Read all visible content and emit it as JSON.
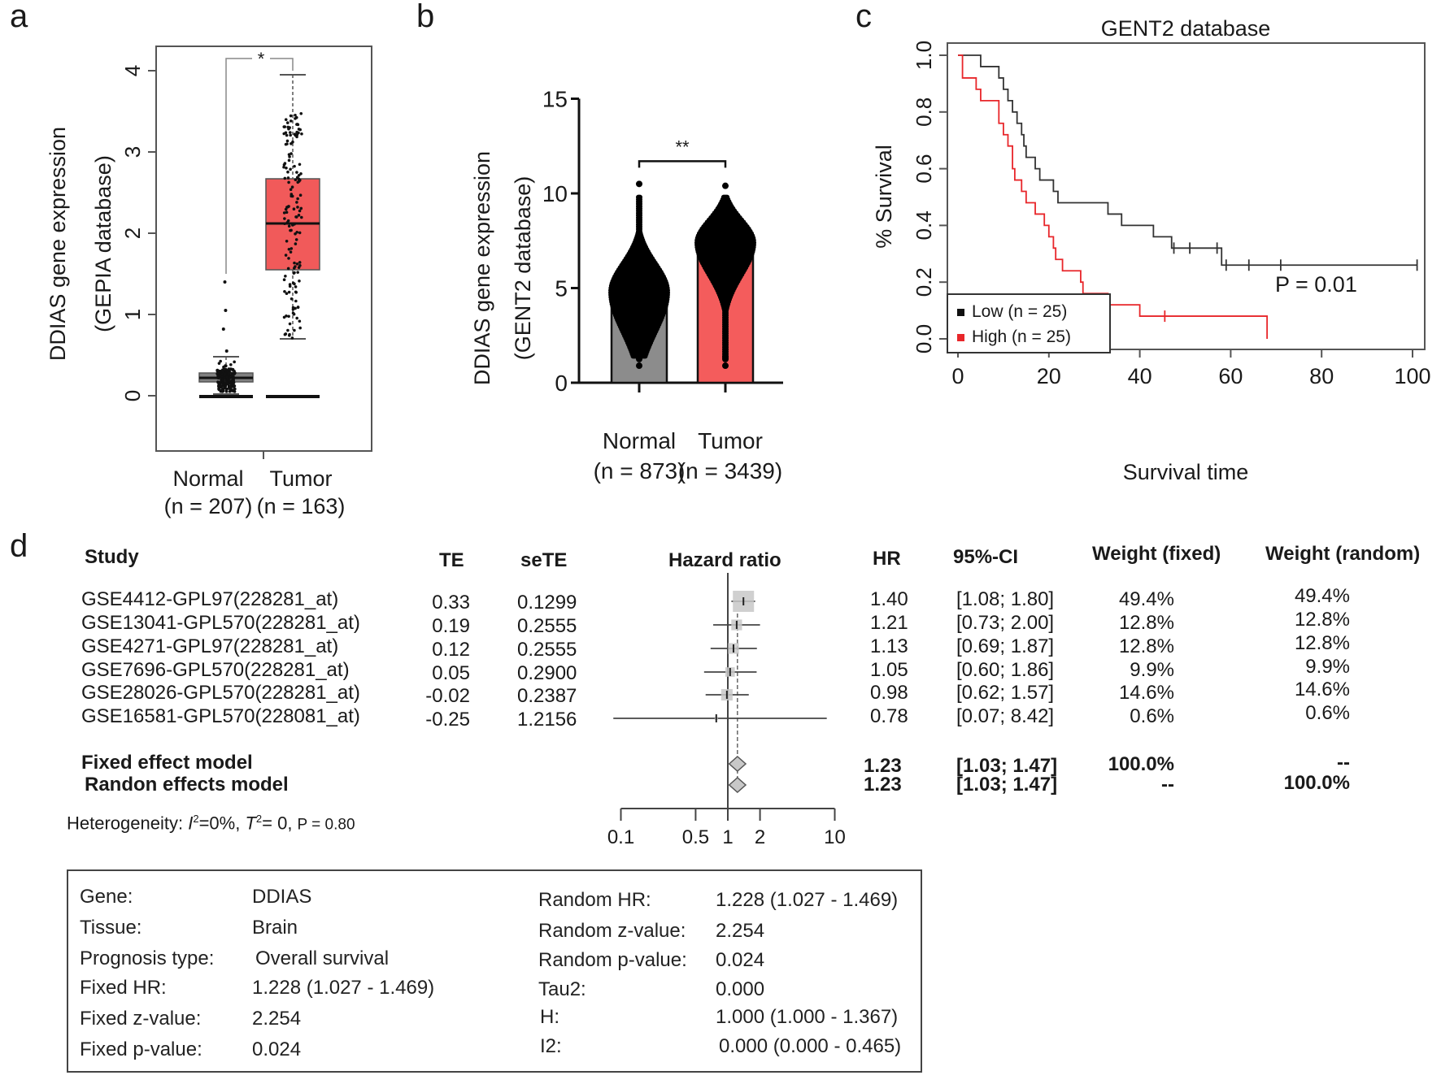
{
  "panels": {
    "a": {
      "letter": "a"
    },
    "b": {
      "letter": "b"
    },
    "c": {
      "letter": "c"
    },
    "d": {
      "letter": "d"
    }
  },
  "chart_data": [
    {
      "id": "a",
      "type": "box",
      "ylabel_line1": "DDIAS gene expression",
      "ylabel_line2": "(GEPIA database)",
      "ylim": [
        0,
        4.2
      ],
      "yticks": [
        "0",
        "1",
        "2",
        "3",
        "4"
      ],
      "significance": "*",
      "categories": [
        {
          "name": "Normal",
          "n_label": "(n = 207)",
          "q1": 0.17,
          "median": 0.22,
          "q3": 0.28,
          "whisker_low": 0.02,
          "whisker_high": 0.48,
          "outliers": [
            0.55,
            0.82,
            1.05,
            1.4
          ],
          "color": "#808080"
        },
        {
          "name": "Tumor",
          "n_label": "(n = 163)",
          "q1": 1.55,
          "median": 2.12,
          "q3": 2.67,
          "whisker_low": 0.7,
          "whisker_high": 3.95,
          "outliers": [],
          "color": "#f15a5a"
        }
      ],
      "baseline_lines": [
        0,
        0
      ]
    },
    {
      "id": "b",
      "type": "bar",
      "ylabel_line1": "DDIAS gene expression",
      "ylabel_line2": "(GENT2 database)",
      "ylim": [
        0,
        15
      ],
      "yticks": [
        "0",
        "5",
        "10",
        "15"
      ],
      "significance": "**",
      "categories": [
        {
          "name": "Normal",
          "n_label": "(n = 873)",
          "mean": 5.0,
          "min": 0.9,
          "max": 10.5,
          "color": "#8c8c8c"
        },
        {
          "name": "Tumor",
          "n_label": "(n = 3439)",
          "mean": 6.7,
          "min": 0.9,
          "max": 10.4,
          "color": "#f45c5c"
        }
      ]
    },
    {
      "id": "c",
      "type": "line",
      "title": "GENT2 database",
      "xlabel": "Survival  time",
      "ylabel": "% Survival",
      "xlim": [
        0,
        100
      ],
      "ylim": [
        0,
        1
      ],
      "xticks": [
        "0",
        "20",
        "40",
        "60",
        "80",
        "100"
      ],
      "yticks": [
        "0.0",
        "0.2",
        "0.4",
        "0.6",
        "0.8",
        "1.0"
      ],
      "annotation": "P = 0.01",
      "legend_position": "bottom-left",
      "series": [
        {
          "name": "Low (n = 25)",
          "color": "#333333",
          "steps": [
            [
              0,
              1.0
            ],
            [
              5,
              0.96
            ],
            [
              9,
              0.92
            ],
            [
              10,
              0.88
            ],
            [
              11,
              0.84
            ],
            [
              12,
              0.8
            ],
            [
              13,
              0.76
            ],
            [
              14,
              0.72
            ],
            [
              14.5,
              0.68
            ],
            [
              15,
              0.64
            ],
            [
              17,
              0.6
            ],
            [
              18,
              0.56
            ],
            [
              21,
              0.52
            ],
            [
              22,
              0.48
            ],
            [
              33,
              0.44
            ],
            [
              36,
              0.4
            ],
            [
              43,
              0.36
            ],
            [
              47,
              0.32
            ],
            [
              58,
              0.26
            ],
            [
              101,
              0.26
            ]
          ],
          "censors": [
            [
              47.5,
              0.32
            ],
            [
              51,
              0.32
            ],
            [
              57,
              0.32
            ],
            [
              59,
              0.26
            ],
            [
              64,
              0.26
            ],
            [
              71,
              0.26
            ],
            [
              101,
              0.26
            ]
          ]
        },
        {
          "name": "High (n = 25)",
          "color": "#e8262a",
          "steps": [
            [
              0,
              1.0
            ],
            [
              1,
              0.92
            ],
            [
              4,
              0.88
            ],
            [
              5,
              0.84
            ],
            [
              9,
              0.76
            ],
            [
              10,
              0.72
            ],
            [
              11,
              0.68
            ],
            [
              12,
              0.6
            ],
            [
              12.5,
              0.56
            ],
            [
              14,
              0.52
            ],
            [
              15,
              0.48
            ],
            [
              17,
              0.44
            ],
            [
              19,
              0.4
            ],
            [
              20,
              0.36
            ],
            [
              21,
              0.32
            ],
            [
              21.5,
              0.28
            ],
            [
              23,
              0.24
            ],
            [
              27,
              0.2
            ],
            [
              27.5,
              0.16
            ],
            [
              33,
              0.12
            ],
            [
              40,
              0.08
            ],
            [
              68,
              0.08
            ],
            [
              68,
              0.0
            ]
          ],
          "censors": [
            [
              45.5,
              0.08
            ]
          ]
        }
      ]
    },
    {
      "id": "d",
      "type": "forest",
      "axis_label": "Hazard ratio",
      "xscale": "log",
      "xlim": [
        0.1,
        10
      ],
      "xticks": [
        "0.1",
        "0.5",
        "1",
        "2",
        "10"
      ],
      "xtick_values": [
        0.1,
        0.5,
        1,
        2,
        10
      ],
      "columns": {
        "study": "Study",
        "te": "TE",
        "sete": "seTE",
        "hr": "HR",
        "ci": "95%-CI",
        "wfixed": "Weight (fixed)",
        "wrandom": "Weight (random)"
      },
      "studies": [
        {
          "study": "GSE4412-GPL97(228281_at)",
          "te": "0.33",
          "sete": "0.1299",
          "hr": 1.4,
          "hr_label": "1.40",
          "lo": 1.08,
          "hi": 1.8,
          "ci": "[1.08; 1.80]",
          "wfixed": "49.4%",
          "wrandom": "49.4%",
          "weight": 49.4
        },
        {
          "study": "GSE13041-GPL570(228281_at)",
          "te": "0.19",
          "sete": "0.2555",
          "hr": 1.21,
          "hr_label": "1.21",
          "lo": 0.73,
          "hi": 2.0,
          "ci": "[0.73; 2.00]",
          "wfixed": "12.8%",
          "wrandom": "12.8%",
          "weight": 12.8
        },
        {
          "study": "GSE4271-GPL97(228281_at)",
          "te": "0.12",
          "sete": "0.2555",
          "hr": 1.13,
          "hr_label": "1.13",
          "lo": 0.69,
          "hi": 1.87,
          "ci": "[0.69; 1.87]",
          "wfixed": "12.8%",
          "wrandom": "12.8%",
          "weight": 12.8
        },
        {
          "study": "GSE7696-GPL570(228281_at)",
          "te": "0.05",
          "sete": "0.2900",
          "hr": 1.05,
          "hr_label": "1.05",
          "lo": 0.6,
          "hi": 1.86,
          "ci": "[0.60; 1.86]",
          "wfixed": "9.9%",
          "wrandom": "9.9%",
          "weight": 9.9
        },
        {
          "study": "GSE28026-GPL570(228281_at)",
          "te": "-0.02",
          "sete": "0.2387",
          "hr": 0.98,
          "hr_label": "0.98",
          "lo": 0.62,
          "hi": 1.57,
          "ci": "[0.62; 1.57]",
          "wfixed": "14.6%",
          "wrandom": "14.6%",
          "weight": 14.6
        },
        {
          "study": "GSE16581-GPL570(228081_at)",
          "te": "-0.25",
          "sete": "1.2156",
          "hr": 0.78,
          "hr_label": "0.78",
          "lo": 0.07,
          "hi": 8.42,
          "ci": "[0.07; 8.42]",
          "wfixed": "0.6%",
          "wrandom": "0.6%",
          "weight": 0.6
        }
      ],
      "summary": [
        {
          "label": "Fixed effect model",
          "hr": 1.23,
          "hr_label": "1.23",
          "lo": 1.03,
          "hi": 1.47,
          "ci": "[1.03; 1.47]",
          "wfixed": "100.0%",
          "wrandom": "--"
        },
        {
          "label": "Randon effects model",
          "hr": 1.23,
          "hr_label": "1.23",
          "lo": 1.03,
          "hi": 1.47,
          "ci": "[1.03; 1.47]",
          "wfixed": "--",
          "wrandom": "100.0%"
        }
      ],
      "heterogeneity": {
        "prefix": "Heterogeneity: ",
        "i2_sym": "I",
        "i2_val": "=0%, ",
        "t2_sym": "T",
        "t2_val": "= 0, ",
        "p": "P = 0.80"
      }
    }
  ],
  "infobox": {
    "left": [
      {
        "label": "Gene:",
        "value": "DDIAS"
      },
      {
        "label": "Tissue:",
        "value": "Brain"
      },
      {
        "label": "Prognosis type:",
        "value": "Overall survival"
      },
      {
        "label": "Fixed HR:",
        "value": "1.228 (1.027 - 1.469)"
      },
      {
        "label": "Fixed z-value:",
        "value": "2.254"
      },
      {
        "label": "Fixed p-value:",
        "value": "0.024"
      }
    ],
    "right": [
      {
        "label": "Random HR:",
        "value": "1.228 (1.027 - 1.469)"
      },
      {
        "label": "Random z-value:",
        "value": "2.254"
      },
      {
        "label": "Random p-value:",
        "value": "0.024"
      },
      {
        "label": "Tau2:",
        "value": "0.000"
      },
      {
        "label": "H:",
        "value": "1.000 (1.000 - 1.367)"
      },
      {
        "label": "I2:",
        "value": "0.000 (0.000 - 0.465)"
      }
    ]
  }
}
